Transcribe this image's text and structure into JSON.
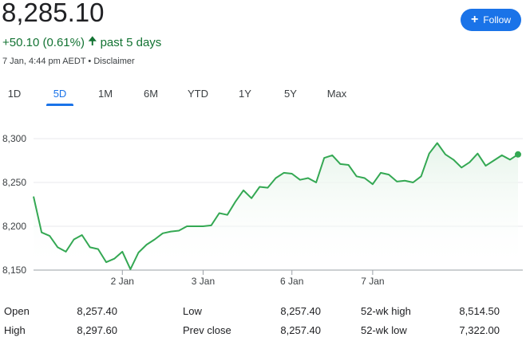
{
  "quote": {
    "price": "8,285.10",
    "change": "+50.10 (0.61%)",
    "arrow_icon": "up-arrow-icon",
    "period": "past 5 days",
    "timestamp": "7 Jan, 4:44 pm AEDT",
    "separator": "•",
    "disclaimer": "Disclaimer"
  },
  "follow": {
    "label": "Follow",
    "icon": "plus-icon",
    "color": "#1a73e8"
  },
  "tabs": [
    {
      "label": "1D",
      "active": false
    },
    {
      "label": "5D",
      "active": true
    },
    {
      "label": "1M",
      "active": false
    },
    {
      "label": "6M",
      "active": false
    },
    {
      "label": "YTD",
      "active": false
    },
    {
      "label": "1Y",
      "active": false
    },
    {
      "label": "5Y",
      "active": false
    },
    {
      "label": "Max",
      "active": false
    }
  ],
  "stats": {
    "open": {
      "label": "Open",
      "value": "8,257.40"
    },
    "high": {
      "label": "High",
      "value": "8,297.60"
    },
    "low": {
      "label": "Low",
      "value": "8,257.40"
    },
    "prev_close": {
      "label": "Prev close",
      "value": "8,257.40"
    },
    "wk52_high": {
      "label": "52-wk high",
      "value": "8,514.50"
    },
    "wk52_low": {
      "label": "52-wk low",
      "value": "7,322.00"
    }
  },
  "chart_data": {
    "type": "area",
    "title": "",
    "xlabel": "",
    "ylabel": "",
    "ylim": [
      8150,
      8300
    ],
    "y_ticks": [
      8150,
      8200,
      8250,
      8300
    ],
    "y_tick_labels": [
      "8,150",
      "8,200",
      "8,250",
      "8,300"
    ],
    "x_tick_labels": [
      "2 Jan",
      "3 Jan",
      "6 Jan",
      "7 Jan"
    ],
    "x_tick_positions": [
      11,
      21,
      32,
      42
    ],
    "grid": true,
    "line_color": "#34a853",
    "fill_color": "#e6f4ea",
    "series": [
      {
        "values": [
          8234,
          8193,
          8189,
          8176,
          8171,
          8185,
          8190,
          8176,
          8174,
          8159,
          8163,
          8171,
          8151,
          8170,
          8179,
          8185,
          8192,
          8194,
          8195,
          8200,
          8200,
          8200,
          8201,
          8215,
          8213,
          8228,
          8241,
          8232,
          8245,
          8244,
          8255,
          8261,
          8260,
          8253,
          8255,
          8250,
          8278,
          8281,
          8271,
          8270,
          8257,
          8255,
          8248,
          8261,
          8259,
          8251,
          8252,
          8250,
          8257,
          8283,
          8295,
          8282,
          8276,
          8267,
          8273,
          8283,
          8269,
          8275,
          8281,
          8276,
          8282
        ]
      }
    ]
  }
}
